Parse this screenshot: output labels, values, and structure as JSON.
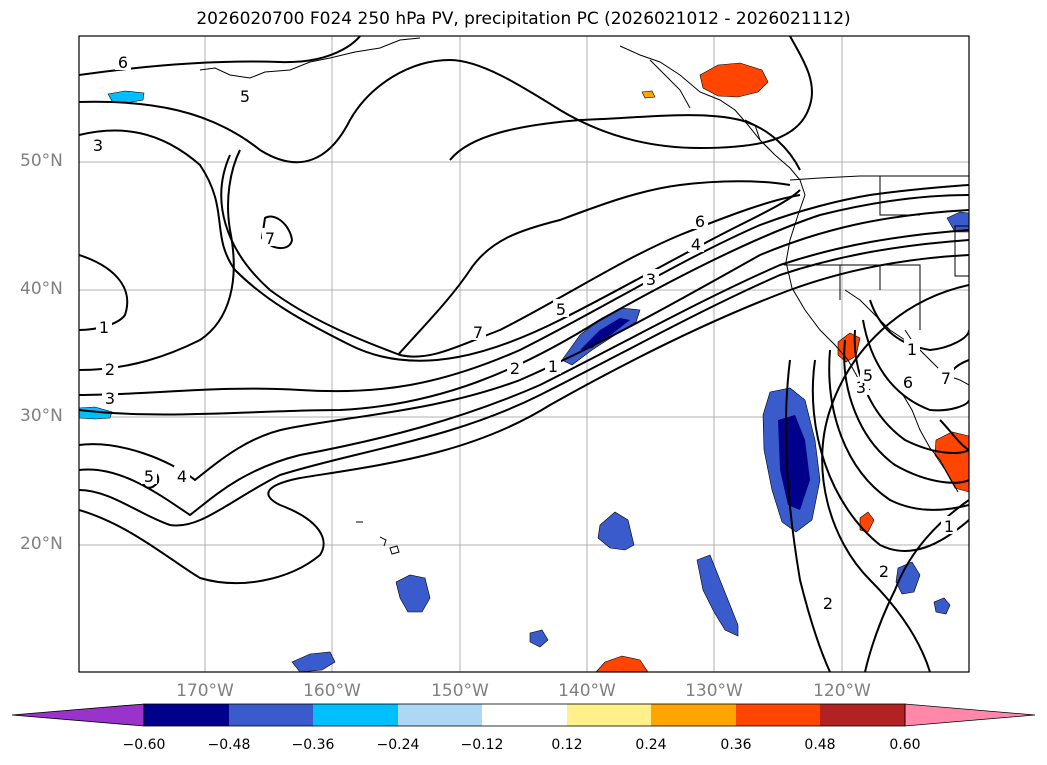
{
  "title": "2026020700 F024 250 hPa PV, precipitation PC (2026021012 - 2026021112)",
  "longitude_labels": [
    "170°W",
    "160°W",
    "150°W",
    "140°W",
    "130°W",
    "120°W"
  ],
  "latitude_labels": [
    "50°N",
    "40°N",
    "30°N",
    "20°N"
  ],
  "colorbar": {
    "ticks": [
      "−0.60",
      "−0.48",
      "−0.36",
      "−0.24",
      "−0.12",
      "0.12",
      "0.24",
      "0.36",
      "0.48",
      "0.60"
    ],
    "colors": [
      "#9933cc",
      "#00008b",
      "#3a5bcc",
      "#00bfff",
      "#add8f5",
      "#ffffff",
      "#fff08a",
      "#ffa500",
      "#ff4500",
      "#b22222",
      "#ff88aa"
    ]
  },
  "contour_labels": [
    "6",
    "5",
    "7",
    "3",
    "1",
    "2",
    "3",
    "5",
    "4",
    "6",
    "4",
    "3",
    "5",
    "7",
    "2",
    "1",
    "3",
    "5",
    "6",
    "7",
    "1",
    "2",
    "2",
    "1"
  ],
  "colors": {
    "contour": "#000000",
    "grid": "#b0b0b0",
    "land_outline": "#000000"
  }
}
